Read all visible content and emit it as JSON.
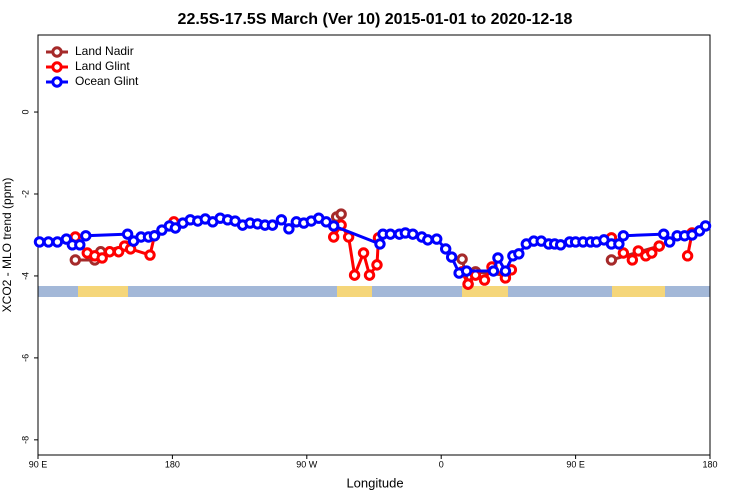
{
  "chart_data": {
    "type": "line",
    "title": "22.5S-17.5S March (Ver 10)   2015-01-01 to 2020-12-18",
    "x_label": "Longitude",
    "y_label": "XCO2 - MLO trend (ppm)",
    "xlim": [
      90,
      540
    ],
    "ylim": [
      -8.37,
      1.88
    ],
    "xticks": [
      {
        "value": 90,
        "label": "90 E"
      },
      {
        "value": 180,
        "label": "180"
      },
      {
        "value": 270,
        "label": "90 W"
      },
      {
        "value": 360,
        "label": "0"
      },
      {
        "value": 450,
        "label": "90 E"
      },
      {
        "value": 540,
        "label": "180"
      }
    ],
    "yticks": [
      0,
      -2,
      -4,
      -6,
      -8
    ],
    "legend": "top-left",
    "series": [
      {
        "name": "Land Nadir",
        "color": "#a52a2a",
        "x": [
          115,
          128,
          132,
          149,
          240,
          290,
          293,
          390,
          374,
          378,
          383,
          403,
          460,
          474,
          506
        ],
        "values": [
          -3.61,
          -3.61,
          -3.41,
          -3.27,
          null,
          -2.56,
          -2.49,
          null,
          -3.59,
          -4.2,
          -3.9,
          -3.98,
          null,
          -3.61,
          -3.27
        ]
      },
      {
        "name": "Land Glint",
        "color": "#ff0000",
        "x": [
          115,
          123,
          128,
          133,
          138,
          144,
          148,
          152,
          165,
          168,
          181,
          240,
          288,
          293,
          298,
          302,
          308,
          312,
          317,
          318,
          340,
          374,
          378,
          383,
          389,
          394,
          403,
          407,
          440,
          474,
          482,
          488,
          492,
          497,
          501,
          506,
          515,
          525,
          528
        ],
        "values": [
          -3.05,
          -3.44,
          -3.51,
          -3.56,
          -3.41,
          -3.41,
          -3.27,
          -3.34,
          -3.49,
          -3.02,
          -2.68,
          null,
          -3.05,
          -2.76,
          -3.05,
          -3.98,
          -3.44,
          -3.98,
          -3.73,
          -3.07,
          null,
          -3.9,
          -4.2,
          -3.98,
          -4.1,
          -3.78,
          -4.05,
          -3.85,
          null,
          -3.07,
          -3.44,
          -3.61,
          -3.39,
          -3.51,
          -3.44,
          -3.27,
          null,
          -3.51,
          -2.95
        ]
      },
      {
        "name": "Ocean Glint",
        "color": "#0000ff",
        "x": [
          91,
          97,
          103,
          109,
          113,
          118,
          122,
          150,
          154,
          159,
          164,
          168,
          173,
          178,
          182,
          187,
          192,
          197,
          202,
          207,
          212,
          217,
          222,
          227,
          232,
          237,
          242,
          247,
          253,
          258,
          263,
          268,
          273,
          278,
          283,
          288,
          319,
          321,
          326,
          332,
          336,
          341,
          347,
          351,
          357,
          363,
          367,
          372,
          377,
          395,
          398,
          403,
          408,
          412,
          417,
          422,
          427,
          432,
          436,
          440,
          446,
          450,
          455,
          460,
          464,
          469,
          474,
          479,
          482,
          509,
          513,
          518,
          523,
          528,
          533,
          537
        ],
        "values": [
          -3.17,
          -3.17,
          -3.17,
          -3.1,
          -3.24,
          -3.24,
          -3.02,
          -2.98,
          -3.15,
          -3.05,
          -3.05,
          -3.02,
          -2.88,
          -2.78,
          -2.83,
          -2.71,
          -2.63,
          -2.66,
          -2.61,
          -2.68,
          -2.59,
          -2.63,
          -2.66,
          -2.76,
          -2.71,
          -2.73,
          -2.76,
          -2.76,
          -2.63,
          -2.85,
          -2.68,
          -2.71,
          -2.66,
          -2.59,
          -2.68,
          -2.78,
          -3.22,
          -2.98,
          -2.98,
          -2.98,
          -2.95,
          -2.98,
          -3.05,
          -3.12,
          -3.1,
          -3.34,
          -3.54,
          -3.93,
          -3.88,
          -3.88,
          -3.56,
          -3.88,
          -3.51,
          -3.46,
          -3.22,
          -3.15,
          -3.15,
          -3.22,
          -3.22,
          -3.24,
          -3.17,
          -3.17,
          -3.17,
          -3.17,
          -3.17,
          -3.12,
          -3.22,
          -3.22,
          -3.02,
          -2.98,
          -3.17,
          -3.02,
          -3.02,
          -3.0,
          -2.9,
          -2.78
        ]
      }
    ]
  }
}
